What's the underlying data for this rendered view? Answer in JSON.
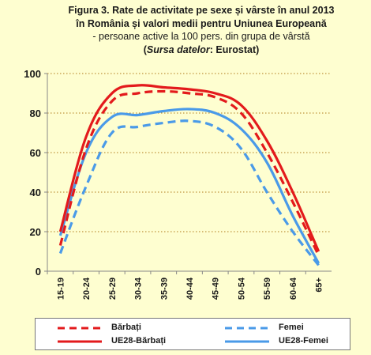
{
  "header": {
    "title_line1": "Figura 3.  Rate de activitate pe sexe și vârste în anul 2013",
    "title_line2": "în România și valori medii  pentru  Uniunea  Europeană",
    "subtitle": "- persoane active la 100 pers. din grupa de vârstă",
    "source_label": "Sursa datelor",
    "source_value": ": Eurostat"
  },
  "chart_data": {
    "type": "line",
    "categories": [
      "15-19",
      "20-24",
      "25-29",
      "30-34",
      "35-39",
      "40-44",
      "45-49",
      "50-54",
      "55-59",
      "60-64",
      "65+"
    ],
    "ylim": [
      0,
      100
    ],
    "yticks": [
      0,
      20,
      40,
      60,
      80,
      100
    ],
    "grid": "horizontal dotted",
    "legend_position": "bottom",
    "series": [
      {
        "name": "Bărbați",
        "color": "#e31a1c",
        "style": "dashed",
        "values": [
          13,
          62,
          86,
          90,
          91,
          90,
          88,
          80,
          60,
          35,
          8
        ]
      },
      {
        "name": "Femei",
        "color": "#4a9ae8",
        "style": "dashed",
        "values": [
          9,
          43,
          70,
          73,
          75,
          76,
          73,
          62,
          40,
          20,
          3
        ]
      },
      {
        "name": "UE28-Bărbați",
        "color": "#e31a1c",
        "style": "solid",
        "values": [
          20,
          68,
          90,
          94,
          93,
          92,
          90,
          84,
          66,
          40,
          10
        ]
      },
      {
        "name": "UE28-Femei",
        "color": "#4a9ae8",
        "style": "solid",
        "values": [
          18,
          60,
          78,
          79,
          81,
          82,
          80,
          72,
          55,
          28,
          4
        ]
      }
    ]
  }
}
